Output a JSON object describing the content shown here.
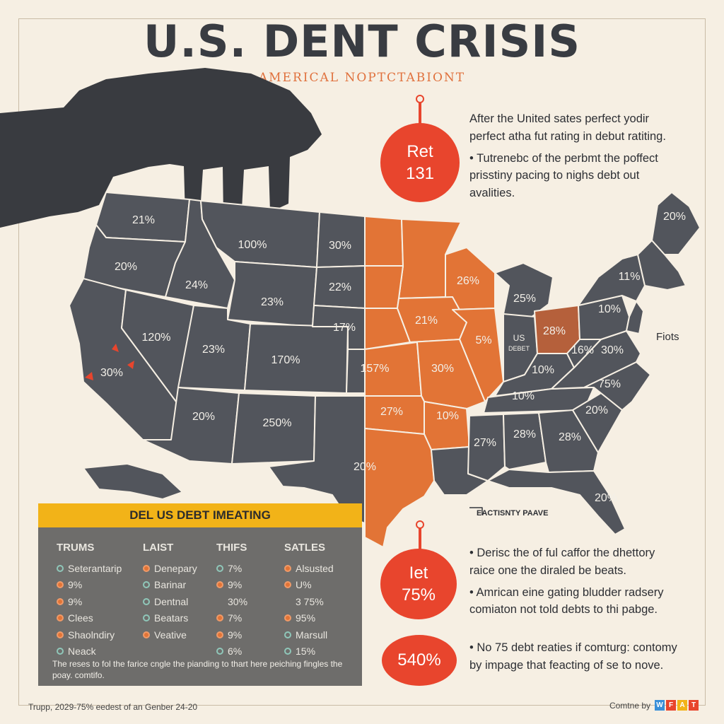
{
  "header": {
    "title": "U.S. DENT CRISIS",
    "subtitle": "AMERICAL NOPTCTABIONT"
  },
  "bubbles": [
    {
      "line1": "Ret",
      "line2": "131"
    },
    {
      "line1": "Iet",
      "line2": "75%"
    },
    {
      "line1": "540%",
      "line2": ""
    }
  ],
  "notes": {
    "top": [
      "After the United sates perfect yodir perfect atha fut rating in debut ratiting.",
      "• Tutrenebc of the perbmt the poffect prisstiny pacing to nighs debt out avalities."
    ],
    "middle": [
      "• Derisc the of ful caffor the dhettory raice one the diraled be beats.",
      "• Amrican eine gating bludder radsery comiaton not told debts to thi pabge."
    ],
    "bottom": [
      "• No 75 debt reaties if comturg: contomy by impage that feacting of se to nove."
    ]
  },
  "side_label": "Fiots",
  "callout": "EACTISNTY PAAVE",
  "map": {
    "labels": {
      "wa": "21%",
      "or": "20%",
      "ca": "30%",
      "id": "24%",
      "nv": "120%",
      "mt": "100%",
      "wy": "23%",
      "ut": "23%",
      "co": "170%",
      "az": "20%",
      "nm": "250%",
      "nd": "30%",
      "sd": "22%",
      "ne": "17%",
      "ks": "157%",
      "ok": "27%",
      "tx": "20%",
      "mn": "",
      "ia": "21%",
      "mo": "30%",
      "ar": "10%",
      "wi": "26%",
      "il": "5%",
      "mi": "25%",
      "in_top": "US",
      "in_bottom": "DEBET",
      "oh": "28%",
      "ky": "10%",
      "tn": "10%",
      "ms": "27%",
      "al": "28%",
      "ga": "28%",
      "sc": "20%",
      "nc": "75%",
      "va": "30%",
      "wv": "16%",
      "pa": "10%",
      "ny": "11%",
      "me": "20%",
      "fl": "20%"
    },
    "colors": {
      "gray": "#52555c",
      "orange": "#e27436",
      "ohio": "#b5603b",
      "stroke": "#f6efe3",
      "accent_red": "#e8452d"
    }
  },
  "legend": {
    "title": "DEL US DEBT IMEATING",
    "columns": [
      {
        "head": "TRUMS",
        "items": [
          {
            "label": "Seterantarip",
            "dot": "teal"
          },
          {
            "label": "9%",
            "dot": "orange"
          },
          {
            "label": "9%",
            "dot": "orange"
          },
          {
            "label": "Clees",
            "dot": "orange"
          },
          {
            "label": "Shaolndiry",
            "dot": "orange"
          },
          {
            "label": "Neack",
            "dot": "teal"
          }
        ]
      },
      {
        "head": "LAIST",
        "items": [
          {
            "label": "Denepary",
            "dot": "orange"
          },
          {
            "label": "Barinar",
            "dot": "teal"
          },
          {
            "label": "Dentnal",
            "dot": "teal"
          },
          {
            "label": "Beatars",
            "dot": "teal"
          },
          {
            "label": "Veative",
            "dot": "orange"
          }
        ]
      },
      {
        "head": "THIFS",
        "items": [
          {
            "label": "7%",
            "dot": "teal"
          },
          {
            "label": "9%",
            "dot": "orange"
          },
          {
            "label": "30%",
            "dot": "none"
          },
          {
            "label": "7%",
            "dot": "orange"
          },
          {
            "label": "9%",
            "dot": "orange"
          },
          {
            "label": "6%",
            "dot": "teal"
          }
        ]
      },
      {
        "head": "SATLES",
        "items": [
          {
            "label": "Alsusted",
            "dot": "orange"
          },
          {
            "label": "U%",
            "dot": "orange"
          },
          {
            "label": "3 75%",
            "dot": "none"
          },
          {
            "label": "95%",
            "dot": "orange"
          },
          {
            "label": "Marsull",
            "dot": "teal"
          },
          {
            "label": "15%",
            "dot": "teal"
          }
        ]
      }
    ],
    "footnote": "The reses to fol the farice cngle the pianding to thart here peiching fingles the poay.           comtifo."
  },
  "footer": {
    "left": "Trupp, 2029-75% eedest of an Genber 24-20",
    "right": "Comtne by",
    "logo": [
      {
        "letter": "W",
        "color": "#3a8fd8"
      },
      {
        "letter": "F",
        "color": "#e8452d"
      },
      {
        "letter": "A",
        "color": "#f2b318"
      },
      {
        "letter": "T",
        "color": "#e8452d"
      }
    ]
  }
}
